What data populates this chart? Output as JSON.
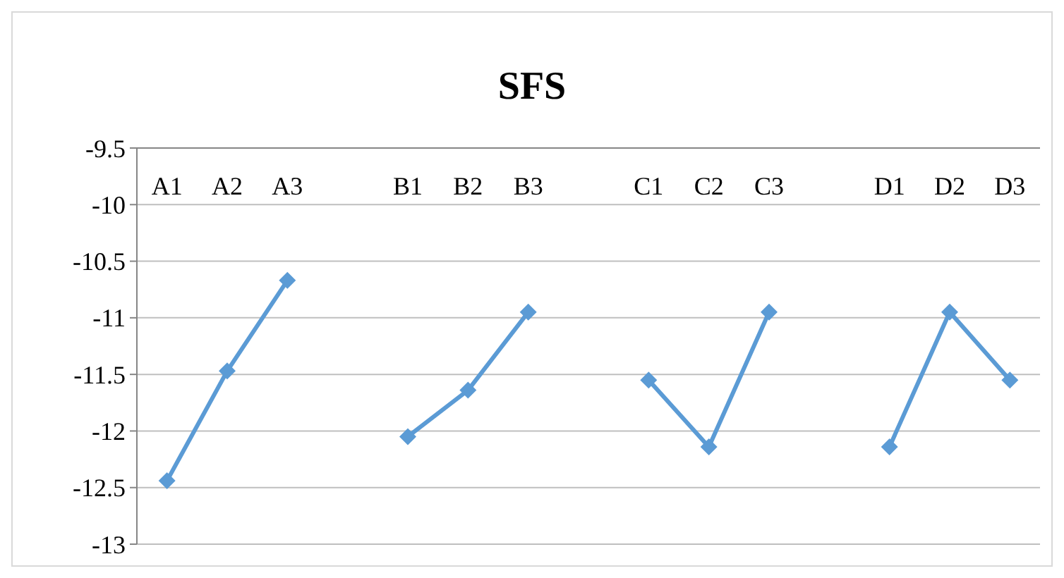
{
  "chart_data": {
    "type": "line",
    "title": "SFS",
    "categories": [
      "A1",
      "A2",
      "A3",
      null,
      "B1",
      "B2",
      "B3",
      null,
      "C1",
      "C2",
      "C3",
      null,
      "D1",
      "D2",
      "D3"
    ],
    "series": [
      {
        "color": "#5b9bd5",
        "values": [
          -12.44,
          -11.47,
          -10.67,
          null,
          -12.05,
          -11.64,
          -10.95,
          null,
          -11.55,
          -12.14,
          -10.95,
          null,
          -12.14,
          -10.95,
          -11.55
        ]
      }
    ],
    "ylim": [
      -13,
      -9.5
    ],
    "yticks": [
      -13,
      -12.5,
      -12,
      -11.5,
      -11,
      -10.5,
      -10,
      -9.5
    ],
    "grid": "y",
    "marker": "diamond",
    "line_style": "solid"
  }
}
